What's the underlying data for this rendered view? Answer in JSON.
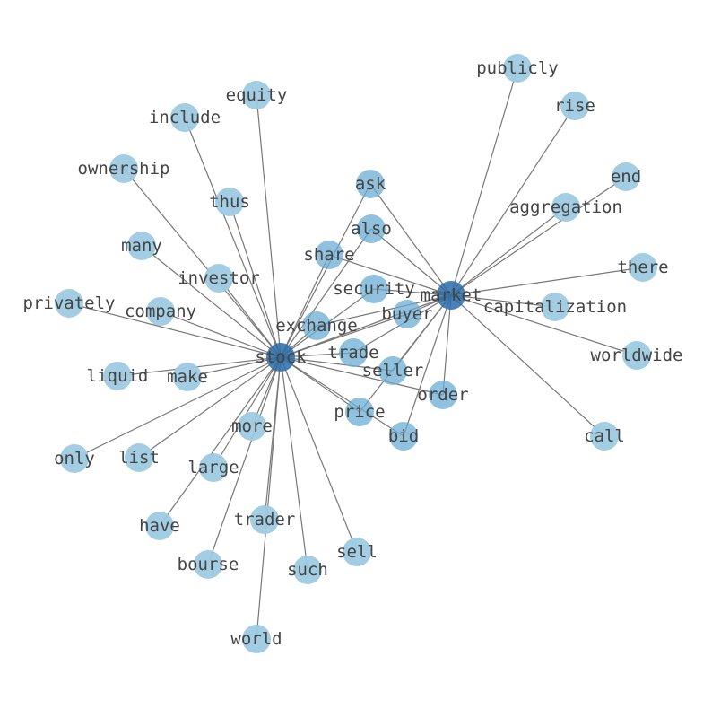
{
  "colors": {
    "node_light": "#9ecae1",
    "node_mid": "#6baed6",
    "node_hub": "#2c6ca8",
    "edge": "#777777",
    "label": "#444444"
  },
  "nodes": [
    {
      "id": "stock",
      "group": "hub"
    },
    {
      "id": "market",
      "group": "hub"
    },
    {
      "id": "ask",
      "group": "shared"
    },
    {
      "id": "also",
      "group": "shared"
    },
    {
      "id": "share",
      "group": "shared"
    },
    {
      "id": "security",
      "group": "shared"
    },
    {
      "id": "exchange",
      "group": "shared"
    },
    {
      "id": "buyer",
      "group": "shared"
    },
    {
      "id": "trade",
      "group": "shared"
    },
    {
      "id": "seller",
      "group": "shared"
    },
    {
      "id": "order",
      "group": "shared"
    },
    {
      "id": "price",
      "group": "shared"
    },
    {
      "id": "bid",
      "group": "shared"
    },
    {
      "id": "publicly",
      "group": "leaf"
    },
    {
      "id": "rise",
      "group": "leaf"
    },
    {
      "id": "end",
      "group": "leaf"
    },
    {
      "id": "aggregation",
      "group": "leaf"
    },
    {
      "id": "there",
      "group": "leaf"
    },
    {
      "id": "capitalization",
      "group": "leaf"
    },
    {
      "id": "worldwide",
      "group": "leaf"
    },
    {
      "id": "call",
      "group": "leaf"
    },
    {
      "id": "equity",
      "group": "leaf"
    },
    {
      "id": "include",
      "group": "leaf"
    },
    {
      "id": "ownership",
      "group": "leaf"
    },
    {
      "id": "thus",
      "group": "leaf"
    },
    {
      "id": "many",
      "group": "leaf"
    },
    {
      "id": "investor",
      "group": "leaf"
    },
    {
      "id": "privately",
      "group": "leaf"
    },
    {
      "id": "company",
      "group": "leaf"
    },
    {
      "id": "liquid",
      "group": "leaf"
    },
    {
      "id": "make",
      "group": "leaf"
    },
    {
      "id": "only",
      "group": "leaf"
    },
    {
      "id": "list",
      "group": "leaf"
    },
    {
      "id": "more",
      "group": "leaf"
    },
    {
      "id": "large",
      "group": "leaf"
    },
    {
      "id": "have",
      "group": "leaf"
    },
    {
      "id": "trader",
      "group": "leaf"
    },
    {
      "id": "bourse",
      "group": "leaf"
    },
    {
      "id": "such",
      "group": "leaf"
    },
    {
      "id": "sell",
      "group": "leaf"
    },
    {
      "id": "world",
      "group": "leaf"
    }
  ],
  "edges": [
    [
      "stock",
      "market"
    ],
    [
      "stock",
      "ask"
    ],
    [
      "market",
      "ask"
    ],
    [
      "stock",
      "also"
    ],
    [
      "market",
      "also"
    ],
    [
      "stock",
      "share"
    ],
    [
      "market",
      "share"
    ],
    [
      "stock",
      "security"
    ],
    [
      "market",
      "security"
    ],
    [
      "stock",
      "exchange"
    ],
    [
      "market",
      "exchange"
    ],
    [
      "stock",
      "buyer"
    ],
    [
      "market",
      "buyer"
    ],
    [
      "stock",
      "trade"
    ],
    [
      "market",
      "trade"
    ],
    [
      "stock",
      "seller"
    ],
    [
      "market",
      "seller"
    ],
    [
      "stock",
      "order"
    ],
    [
      "market",
      "order"
    ],
    [
      "stock",
      "price"
    ],
    [
      "market",
      "price"
    ],
    [
      "stock",
      "bid"
    ],
    [
      "market",
      "bid"
    ],
    [
      "market",
      "publicly"
    ],
    [
      "market",
      "rise"
    ],
    [
      "market",
      "end"
    ],
    [
      "market",
      "aggregation"
    ],
    [
      "market",
      "there"
    ],
    [
      "market",
      "capitalization"
    ],
    [
      "market",
      "worldwide"
    ],
    [
      "market",
      "call"
    ],
    [
      "stock",
      "equity"
    ],
    [
      "stock",
      "include"
    ],
    [
      "stock",
      "ownership"
    ],
    [
      "stock",
      "thus"
    ],
    [
      "stock",
      "many"
    ],
    [
      "stock",
      "investor"
    ],
    [
      "stock",
      "privately"
    ],
    [
      "stock",
      "company"
    ],
    [
      "stock",
      "liquid"
    ],
    [
      "stock",
      "make"
    ],
    [
      "stock",
      "only"
    ],
    [
      "stock",
      "list"
    ],
    [
      "stock",
      "more"
    ],
    [
      "stock",
      "large"
    ],
    [
      "stock",
      "have"
    ],
    [
      "stock",
      "trader"
    ],
    [
      "stock",
      "bourse"
    ],
    [
      "stock",
      "such"
    ],
    [
      "stock",
      "sell"
    ],
    [
      "stock",
      "world"
    ]
  ]
}
